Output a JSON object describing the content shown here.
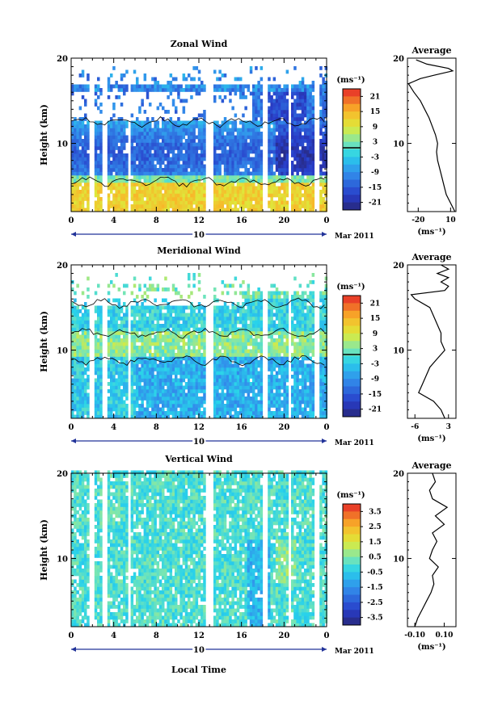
{
  "chart_data": [
    {
      "type": "heatmap",
      "title": "Zonal Wind",
      "ylabel": "Height (km)",
      "x_ticks": [
        "0",
        "4",
        "8",
        "12",
        "16",
        "20",
        "0"
      ],
      "xlim": [
        0,
        24
      ],
      "y_ticks": [
        "10",
        "20"
      ],
      "ylim": [
        2,
        20
      ],
      "date_axis": {
        "day": "10",
        "month_label": "Mar 2011"
      },
      "colorbar": {
        "unit": "(ms⁻¹)",
        "ticks": [
          "21",
          "15",
          "9",
          "3",
          "-3",
          "-9",
          "-15",
          "-21"
        ],
        "range": [
          -24,
          24
        ]
      },
      "profile": {
        "title": "Average",
        "xlabel": "(ms⁻¹)",
        "x_ticks": [
          "-20",
          "10"
        ],
        "xlim": [
          -30,
          15
        ],
        "y_ticks": [
          "10",
          "20"
        ],
        "points": [
          [
            14,
            2
          ],
          [
            10,
            3
          ],
          [
            6,
            4
          ],
          [
            4,
            5
          ],
          [
            2,
            6
          ],
          [
            0,
            7
          ],
          [
            -2,
            8
          ],
          [
            -3,
            9
          ],
          [
            -2,
            10
          ],
          [
            -4,
            11
          ],
          [
            -7,
            12
          ],
          [
            -10,
            13
          ],
          [
            -14,
            14
          ],
          [
            -18,
            15
          ],
          [
            -24,
            16
          ],
          [
            -29,
            17
          ],
          [
            -18,
            17.6
          ],
          [
            -5,
            18
          ],
          [
            5,
            18.3
          ],
          [
            12,
            18.5
          ],
          [
            8,
            18.8
          ],
          [
            -12,
            19.3
          ],
          [
            -22,
            19.8
          ]
        ]
      }
    },
    {
      "type": "heatmap",
      "title": "Meridional Wind",
      "ylabel": "Height (km)",
      "x_ticks": [
        "0",
        "4",
        "8",
        "12",
        "16",
        "20",
        "0"
      ],
      "xlim": [
        0,
        24
      ],
      "y_ticks": [
        "10",
        "20"
      ],
      "ylim": [
        2,
        20
      ],
      "date_axis": {
        "day": "10",
        "month_label": "Mar 2011"
      },
      "colorbar": {
        "unit": "(ms⁻¹)",
        "ticks": [
          "21",
          "15",
          "9",
          "3",
          "-3",
          "-9",
          "-15",
          "-21"
        ],
        "range": [
          -24,
          24
        ]
      },
      "profile": {
        "title": "Average",
        "xlabel": "(ms⁻¹)",
        "x_ticks": [
          "-6",
          "3"
        ],
        "xlim": [
          -8,
          5
        ],
        "y_ticks": [
          "10",
          "20"
        ],
        "points": [
          [
            2,
            2
          ],
          [
            1,
            3
          ],
          [
            -1,
            4
          ],
          [
            -5,
            5
          ],
          [
            -4,
            6
          ],
          [
            -3,
            7
          ],
          [
            -2,
            8
          ],
          [
            0,
            9
          ],
          [
            2,
            10
          ],
          [
            1,
            11
          ],
          [
            1,
            12
          ],
          [
            0,
            13
          ],
          [
            -1,
            14
          ],
          [
            -2,
            15
          ],
          [
            -6,
            16
          ],
          [
            -7,
            16.5
          ],
          [
            2,
            17
          ],
          [
            3,
            17.5
          ],
          [
            1,
            18
          ],
          [
            3,
            18.5
          ],
          [
            0,
            19
          ],
          [
            3,
            19.5
          ],
          [
            1,
            20
          ]
        ]
      }
    },
    {
      "type": "heatmap",
      "title": "Vertical Wind",
      "ylabel": "Height (km)",
      "xlabel": "Local Time",
      "x_ticks": [
        "0",
        "4",
        "8",
        "12",
        "16",
        "20",
        "0"
      ],
      "xlim": [
        0,
        24
      ],
      "y_ticks": [
        "10",
        "20"
      ],
      "ylim": [
        2,
        20
      ],
      "date_axis": {
        "day": "10",
        "month_label": "Mar 2011"
      },
      "colorbar": {
        "unit": "(ms⁻¹)",
        "ticks": [
          "3.5",
          "2.5",
          "1.5",
          "0.5",
          "-0.5",
          "-1.5",
          "-2.5",
          "-3.5"
        ],
        "range": [
          -4,
          4
        ]
      },
      "profile": {
        "title": "Average",
        "xlabel": "(ms⁻¹)",
        "x_ticks": [
          "-0.10",
          "0.10"
        ],
        "xlim": [
          -0.15,
          0.18
        ],
        "y_ticks": [
          "10",
          "20"
        ],
        "points": [
          [
            -0.1,
            2
          ],
          [
            -0.08,
            3
          ],
          [
            -0.05,
            4
          ],
          [
            -0.02,
            5
          ],
          [
            0.01,
            6
          ],
          [
            0.03,
            7
          ],
          [
            0.02,
            8
          ],
          [
            0.06,
            9
          ],
          [
            0.0,
            10
          ],
          [
            0.02,
            11
          ],
          [
            0.05,
            12
          ],
          [
            0.02,
            13
          ],
          [
            0.1,
            14
          ],
          [
            0.04,
            15
          ],
          [
            0.12,
            16
          ],
          [
            0.02,
            17
          ],
          [
            0.0,
            18
          ],
          [
            0.04,
            19
          ],
          [
            0.02,
            20
          ]
        ]
      }
    }
  ]
}
